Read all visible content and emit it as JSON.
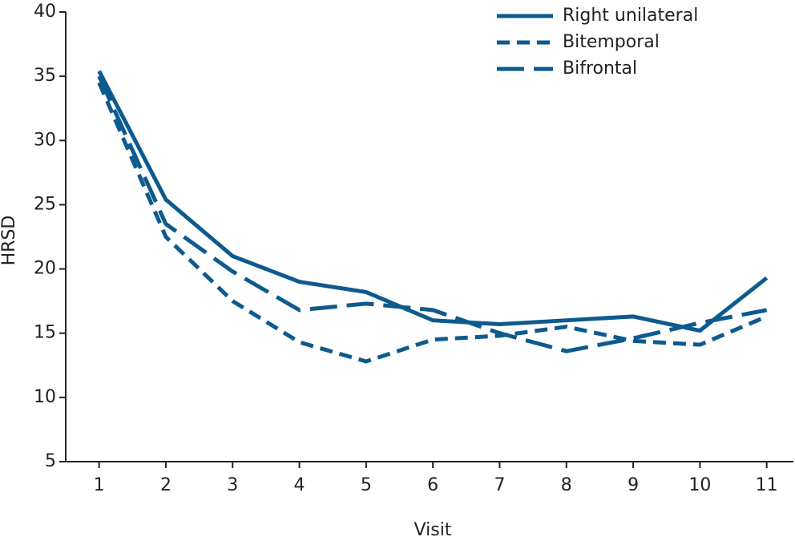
{
  "chart_data": {
    "type": "line",
    "x_label": "Visit",
    "y_label": "HRSD",
    "x": [
      1,
      2,
      3,
      4,
      5,
      6,
      7,
      8,
      9,
      10,
      11
    ],
    "xlim": [
      0.5,
      11.4
    ],
    "xticks": [
      1,
      2,
      3,
      4,
      5,
      6,
      7,
      8,
      9,
      10,
      11
    ],
    "ylim": [
      5,
      40
    ],
    "yticks": [
      5,
      10,
      15,
      20,
      25,
      30,
      35,
      40
    ],
    "legend": "top-right",
    "series": [
      {
        "name": "Right unilateral",
        "color": "#0d5a8e",
        "dash": "solid",
        "values": [
          35.4,
          25.4,
          21.0,
          19.0,
          18.2,
          16.0,
          15.7,
          16.0,
          16.3,
          15.2,
          19.3
        ]
      },
      {
        "name": "Bitemporal",
        "color": "#0d5a8e",
        "dash": "short",
        "values": [
          34.5,
          22.5,
          17.5,
          14.3,
          12.8,
          14.5,
          14.8,
          15.5,
          14.4,
          14.1,
          16.3
        ]
      },
      {
        "name": "Bifrontal",
        "color": "#0d5a8e",
        "dash": "long",
        "values": [
          35.0,
          23.5,
          19.8,
          16.8,
          17.3,
          16.8,
          15.0,
          13.6,
          14.6,
          15.8,
          16.8
        ]
      }
    ]
  }
}
